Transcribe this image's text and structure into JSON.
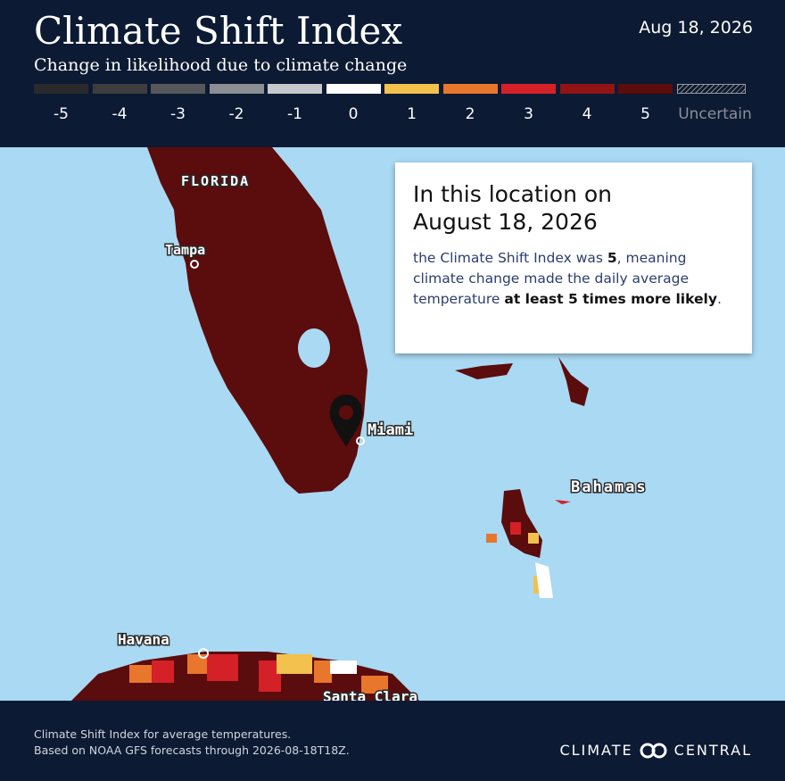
{
  "header": {
    "title": "Climate Shift Index",
    "subtitle": "Change in likelihood due to climate change",
    "date": "Aug 18, 2026"
  },
  "legend": {
    "items": [
      {
        "label": "-5",
        "color": "#2a2a2c"
      },
      {
        "label": "-4",
        "color": "#3d3d40"
      },
      {
        "label": "-3",
        "color": "#56575b"
      },
      {
        "label": "-2",
        "color": "#8b8e93"
      },
      {
        "label": "-1",
        "color": "#c6c8cb"
      },
      {
        "label": "0",
        "color": "#ffffff"
      },
      {
        "label": "1",
        "color": "#f2c14e"
      },
      {
        "label": "2",
        "color": "#e8762c"
      },
      {
        "label": "3",
        "color": "#d42027"
      },
      {
        "label": "4",
        "color": "#901414"
      },
      {
        "label": "5",
        "color": "#5b0c0c"
      }
    ],
    "uncertain": "Uncertain"
  },
  "map_labels": {
    "florida": "FLORIDA",
    "tampa": "Tampa",
    "miami": "Miami",
    "bahamas": "Bahamas",
    "havana": "Havana",
    "santa_clara": "Santa Clara"
  },
  "callout": {
    "heading": [
      "In this location on",
      "August 18, 2026"
    ],
    "body": [
      "the Climate Shift Index was ",
      "5",
      ", meaning climate change made the daily average temperature ",
      "at least 5 times more likely",
      "."
    ]
  },
  "footer": {
    "lines": [
      "Climate Shift Index for average temperatures.",
      "Based on NOAA GFS forecasts through 2026-08-18T18Z."
    ],
    "brand": [
      "CLIMATE",
      "CENTRAL"
    ]
  }
}
